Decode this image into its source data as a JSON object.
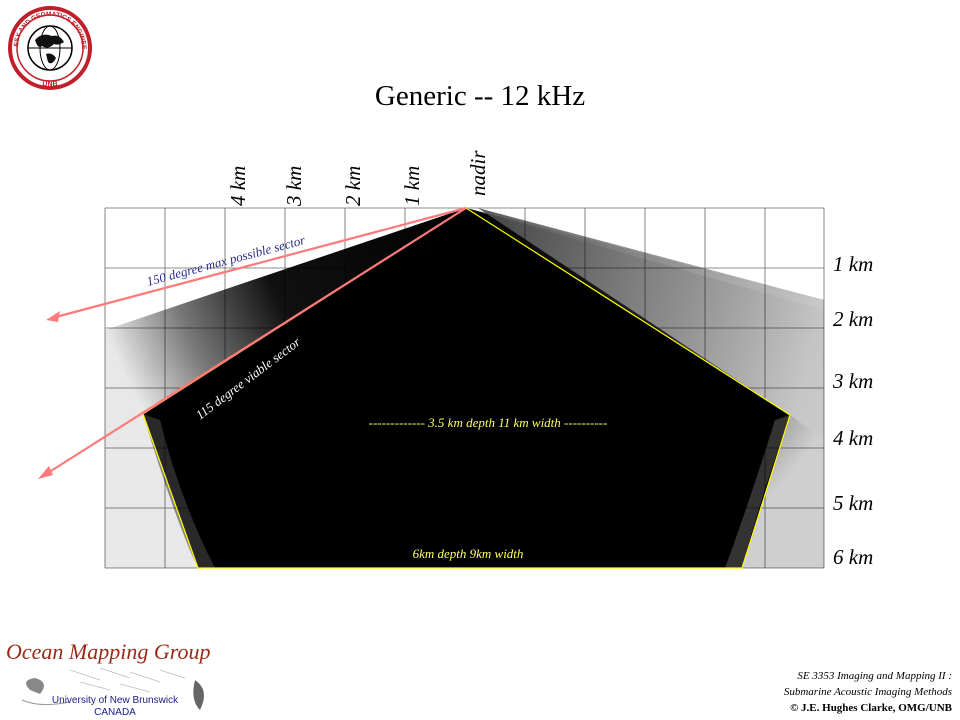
{
  "title": "Generic -- 12 kHz",
  "across_track_labels": [
    "4 km",
    "3 km",
    "2 km",
    "1 km",
    "nadir"
  ],
  "depth_labels": [
    "1 km",
    "2 km",
    "3 km",
    "4 km",
    "5 km",
    "6 km"
  ],
  "annotations": {
    "max_sector": "150 degree max possible sector",
    "viable_sector": "115 degree viable sector",
    "line_3_5km": "------------- 3.5 km depth 11 km width ----------",
    "line_6km": "6km depth 9km  width"
  },
  "logo": {
    "name": "globe-seal",
    "ring_text": "GEODESY AND GEOMATICS ENGINEERING",
    "ring_bottom": "UNB"
  },
  "footer": {
    "group_name": "Ocean Mapping Group",
    "university": "University of New Brunswick",
    "country": "CANADA",
    "course": "SE 3353 Imaging and Mapping II :",
    "subtitle": "Submarine Acoustic Imaging Methods",
    "copyright": "© J.E. Hughes Clarke, OMG/UNB"
  },
  "colors": {
    "sector_line": "#ff7a7a",
    "coverage_outline": "#ffff00",
    "annotation_text_blue": "#2b2b8c",
    "annotation_text_yellow": "#ffff66",
    "group_title": "#9a2a18"
  }
}
